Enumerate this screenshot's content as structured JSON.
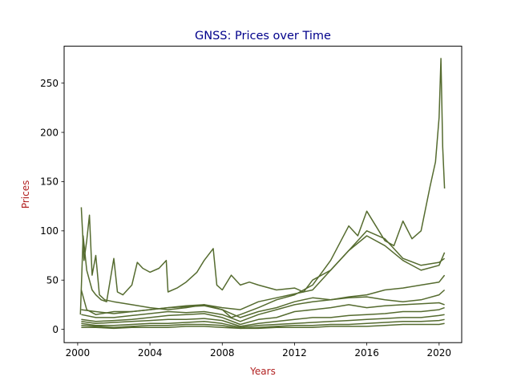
{
  "chart_data": {
    "type": "line",
    "title": "GNSS: Prices over Time",
    "xlabel": "Years",
    "ylabel": "Prices",
    "xlim": [
      1999.25,
      2021.25
    ],
    "ylim": [
      -13.5,
      287.5
    ],
    "x_ticks": [
      2000,
      2004,
      2008,
      2012,
      2016,
      2020
    ],
    "x_tick_labels": [
      "2000",
      "2004",
      "2008",
      "2012",
      "2016",
      "2020"
    ],
    "y_ticks": [
      0,
      50,
      100,
      150,
      200,
      250
    ],
    "y_tick_labels": [
      "0",
      "50",
      "100",
      "150",
      "200",
      "250"
    ],
    "grid": false,
    "legend": "none",
    "colors": {
      "line": "#556B2F",
      "title": "#00008B",
      "axis_label": "#B22222"
    },
    "series": [
      {
        "x": [
          2000.15,
          2000.3,
          2000.5,
          2000.8,
          2001.0,
          2001.3,
          2001.6,
          2002.0,
          2002.2,
          2002.5,
          2003.0,
          2003.3,
          2003.6,
          2004.0,
          2004.5,
          2004.9,
          2005.0,
          2005.5,
          2006.0,
          2006.6,
          2007.0,
          2007.5,
          2007.7,
          2008.0,
          2008.5,
          2009.0,
          2009.5,
          2010.0,
          2011.0,
          2012.0,
          2012.5,
          2013.0,
          2014.0,
          2015.0,
          2016.0,
          2017.0,
          2018.0,
          2019.0,
          2020.0,
          2020.3
        ],
        "y": [
          15,
          95,
          60,
          40,
          35,
          30,
          28,
          72,
          38,
          35,
          45,
          68,
          62,
          58,
          62,
          70,
          38,
          42,
          48,
          58,
          70,
          82,
          45,
          40,
          55,
          45,
          48,
          45,
          40,
          42,
          38,
          50,
          60,
          80,
          100,
          92,
          72,
          65,
          68,
          72
        ]
      },
      {
        "x": [
          2000.2,
          2000.35,
          2000.5,
          2000.65,
          2000.8,
          2001.0,
          2001.2,
          2001.5,
          2002.0,
          2003.0,
          2004.0,
          2005.0,
          2006.0,
          2007.0,
          2008.0,
          2008.5,
          2009.0,
          2010.0,
          2011.0,
          2012.0,
          2013.0,
          2014.0,
          2015.0,
          2015.5,
          2016.0,
          2016.5,
          2017.0,
          2017.5,
          2018.0,
          2018.5,
          2019.0,
          2019.5,
          2019.8,
          2020.0,
          2020.1,
          2020.2,
          2020.3
        ],
        "y": [
          124,
          70,
          90,
          116,
          55,
          75,
          35,
          30,
          28,
          25,
          22,
          20,
          22,
          25,
          20,
          12,
          15,
          22,
          30,
          35,
          45,
          70,
          105,
          95,
          120,
          105,
          90,
          85,
          110,
          92,
          100,
          145,
          170,
          215,
          275,
          185,
          143
        ]
      },
      {
        "x": [
          2000.2,
          2000.5,
          2001.0,
          2002.0,
          2003.0,
          2004.0,
          2005.0,
          2006.0,
          2007.0,
          2008.0,
          2009.0,
          2010.0,
          2011.0,
          2012.0,
          2013.0,
          2014.0,
          2015.0,
          2016.0,
          2017.0,
          2018.0,
          2019.0,
          2020.0,
          2020.3
        ],
        "y": [
          40,
          20,
          15,
          18,
          18,
          20,
          22,
          24,
          25,
          22,
          20,
          28,
          32,
          36,
          40,
          60,
          80,
          95,
          85,
          70,
          60,
          65,
          78
        ]
      },
      {
        "x": [
          2000.2,
          2001.0,
          2002.0,
          2003.0,
          2004.0,
          2005.0,
          2006.0,
          2007.0,
          2008.0,
          2009.0,
          2010.0,
          2011.0,
          2012.0,
          2013.0,
          2014.0,
          2015.0,
          2016.0,
          2017.0,
          2018.0,
          2019.0,
          2020.0,
          2020.3
        ],
        "y": [
          20,
          18,
          16,
          18,
          20,
          22,
          23,
          24,
          20,
          12,
          18,
          22,
          28,
          32,
          30,
          33,
          35,
          40,
          42,
          45,
          48,
          55
        ]
      },
      {
        "x": [
          2000.2,
          2001.0,
          2002.0,
          2003.0,
          2004.0,
          2005.0,
          2006.0,
          2007.0,
          2008.0,
          2009.0,
          2010.0,
          2011.0,
          2012.0,
          2013.0,
          2014.0,
          2015.0,
          2016.0,
          2017.0,
          2018.0,
          2019.0,
          2020.0,
          2020.3
        ],
        "y": [
          15,
          12,
          12,
          14,
          16,
          18,
          17,
          18,
          15,
          8,
          15,
          20,
          25,
          28,
          30,
          32,
          33,
          30,
          28,
          30,
          35,
          40
        ]
      },
      {
        "x": [
          2000.2,
          2001.0,
          2002.0,
          2003.0,
          2004.0,
          2005.0,
          2006.0,
          2007.0,
          2008.0,
          2009.0,
          2010.0,
          2011.0,
          2012.0,
          2013.0,
          2014.0,
          2015.0,
          2016.0,
          2017.0,
          2018.0,
          2019.0,
          2020.0,
          2020.3
        ],
        "y": [
          10,
          8,
          9,
          10,
          12,
          14,
          15,
          16,
          12,
          5,
          10,
          12,
          18,
          20,
          22,
          25,
          22,
          24,
          25,
          26,
          27,
          25
        ]
      },
      {
        "x": [
          2000.2,
          2001.0,
          2002.0,
          2003.0,
          2004.0,
          2005.0,
          2006.0,
          2007.0,
          2008.0,
          2009.0,
          2010.0,
          2011.0,
          2012.0,
          2013.0,
          2014.0,
          2015.0,
          2016.0,
          2017.0,
          2018.0,
          2019.0,
          2020.0,
          2020.3
        ],
        "y": [
          8,
          6,
          7,
          8,
          9,
          10,
          10,
          11,
          9,
          3,
          6,
          8,
          10,
          12,
          12,
          14,
          15,
          16,
          18,
          18,
          20,
          22
        ]
      },
      {
        "x": [
          2000.2,
          2001.0,
          2002.0,
          2003.0,
          2004.0,
          2005.0,
          2006.0,
          2007.0,
          2008.0,
          2009.0,
          2010.0,
          2011.0,
          2012.0,
          2013.0,
          2014.0,
          2015.0,
          2016.0,
          2017.0,
          2018.0,
          2019.0,
          2020.0,
          2020.3
        ],
        "y": [
          6,
          4,
          4,
          5,
          6,
          6,
          7,
          8,
          6,
          2,
          4,
          5,
          6,
          7,
          8,
          9,
          10,
          11,
          12,
          12,
          14,
          15
        ]
      },
      {
        "x": [
          2000.2,
          2001.0,
          2002.0,
          2003.0,
          2004.0,
          2005.0,
          2006.0,
          2007.0,
          2008.0,
          2009.0,
          2010.0,
          2011.0,
          2012.0,
          2013.0,
          2014.0,
          2015.0,
          2016.0,
          2017.0,
          2018.0,
          2019.0,
          2020.0,
          2020.3
        ],
        "y": [
          4,
          3,
          2,
          3,
          4,
          4,
          5,
          5,
          4,
          1,
          2,
          3,
          4,
          4,
          5,
          5,
          6,
          7,
          8,
          8,
          9,
          10
        ]
      },
      {
        "x": [
          2000.2,
          2001.0,
          2002.0,
          2003.0,
          2004.0,
          2005.0,
          2006.0,
          2007.0,
          2008.0,
          2009.0,
          2010.0,
          2011.0,
          2012.0,
          2013.0,
          2014.0,
          2015.0,
          2016.0,
          2017.0,
          2018.0,
          2019.0,
          2020.0,
          2020.3
        ],
        "y": [
          2,
          2,
          1,
          2,
          2,
          2,
          3,
          3,
          2,
          1,
          1,
          2,
          2,
          2,
          3,
          3,
          3,
          4,
          5,
          5,
          5,
          6
        ]
      }
    ]
  }
}
